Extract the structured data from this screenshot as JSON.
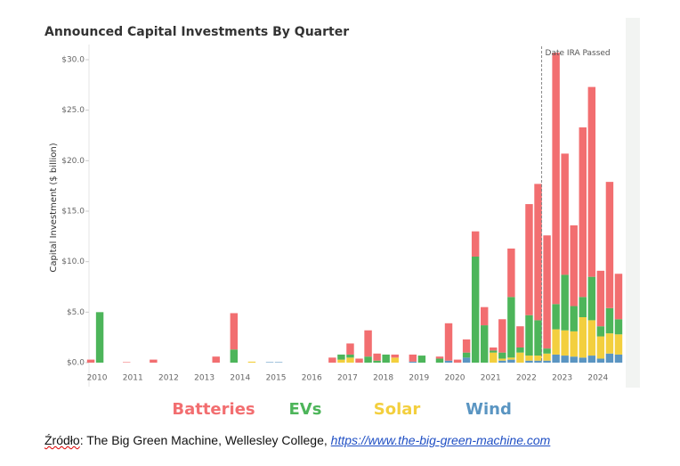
{
  "chart_data": {
    "type": "stacked_bar",
    "title": "Announced Capital Investments By Quarter",
    "ylabel": "Capital Investment ($ billion)",
    "annotation": "Date IRA Passed",
    "categories": [
      "2010",
      null,
      null,
      null,
      "2011",
      null,
      null,
      null,
      "2012",
      null,
      null,
      null,
      "2013",
      null,
      null,
      null,
      "2014",
      null,
      null,
      null,
      "2015",
      null,
      null,
      null,
      "2016",
      null,
      null,
      null,
      "2017",
      null,
      null,
      null,
      "2018",
      null,
      null,
      null,
      "2019",
      null,
      null,
      null,
      "2020",
      null,
      null,
      null,
      "2021",
      null,
      null,
      null,
      "2022",
      null,
      null,
      null,
      "2023",
      null,
      null,
      null,
      "2024",
      null,
      null,
      null
    ],
    "series": [
      {
        "name": "Batteries",
        "color": "#f26e70",
        "values": [
          0.3,
          0,
          0,
          0,
          0.05,
          0,
          0,
          0.3,
          0,
          0,
          0,
          0,
          0,
          0,
          0.6,
          0,
          3.6,
          0,
          0,
          0,
          0,
          0,
          0,
          0,
          0,
          0,
          0,
          0.5,
          0,
          1.1,
          0.4,
          2.6,
          0.7,
          0,
          0.3,
          0,
          0.7,
          0,
          0,
          0.2,
          3.7,
          0.3,
          1.3,
          2.5,
          1.8,
          0.3,
          3.3,
          4.8,
          2.1,
          11.0,
          13.5,
          11.2,
          24.9,
          12.0,
          8.0,
          16.8,
          18.8,
          5.5,
          12.5,
          4.5
        ]
      },
      {
        "name": "EVs",
        "color": "#4db55a",
        "values": [
          0,
          5.0,
          0,
          0,
          0,
          0,
          0,
          0,
          0,
          0,
          0,
          0,
          0,
          0,
          0,
          0,
          1.3,
          0,
          0,
          0,
          0,
          0,
          0,
          0,
          0,
          0,
          0,
          0,
          0.5,
          0.3,
          0,
          0.6,
          0.2,
          0.8,
          0,
          0,
          0,
          0.7,
          0,
          0.4,
          0,
          0,
          0.5,
          10.5,
          3.7,
          0.2,
          0.6,
          6.0,
          0.5,
          4.0,
          3.5,
          0.5,
          2.5,
          5.5,
          2.5,
          2.0,
          4.3,
          1.0,
          2.5,
          1.5
        ]
      },
      {
        "name": "Solar",
        "color": "#f3cf3e",
        "values": [
          0,
          0,
          0,
          0,
          0,
          0,
          0,
          0,
          0,
          0,
          0,
          0,
          0,
          0,
          0,
          0,
          0,
          0,
          0.1,
          0,
          0,
          0,
          0,
          0,
          0,
          0,
          0,
          0,
          0.3,
          0.5,
          0,
          0,
          0,
          0,
          0.5,
          0,
          0,
          0,
          0,
          0,
          0,
          0,
          0,
          0,
          0,
          1.0,
          0.2,
          0.2,
          1.0,
          0.5,
          0.5,
          0.7,
          2.5,
          2.5,
          2.5,
          4.0,
          3.5,
          2.2,
          2.0,
          2.0
        ]
      },
      {
        "name": "Wind",
        "color": "#5a95c2",
        "values": [
          0,
          0,
          0,
          0,
          0,
          0,
          0,
          0,
          0,
          0,
          0,
          0,
          0,
          0,
          0,
          0,
          0,
          0,
          0,
          0,
          0.05,
          0.05,
          0,
          0,
          0,
          0,
          0,
          0,
          0,
          0,
          0,
          0,
          0,
          0,
          0,
          0,
          0.1,
          0,
          0,
          0,
          0.2,
          0,
          0.5,
          0,
          0,
          0,
          0.2,
          0.3,
          0,
          0.2,
          0.2,
          0.2,
          0.8,
          0.7,
          0.6,
          0.5,
          0.7,
          0.4,
          0.9,
          0.8
        ]
      }
    ],
    "ylim": [
      0,
      31.5
    ],
    "yticks": [
      {
        "value": 0,
        "label": "$0.0"
      },
      {
        "value": 5,
        "label": "$5.0"
      },
      {
        "value": 10,
        "label": "$10.0"
      },
      {
        "value": 15,
        "label": "$15.0"
      },
      {
        "value": 20,
        "label": "$20.0"
      },
      {
        "value": 25,
        "label": "$25.0"
      },
      {
        "value": 30,
        "label": "$30.0"
      }
    ],
    "grid": false
  },
  "source": {
    "prefix": "Źródło",
    "text": ": The Big Green Machine, Wellesley College, ",
    "link": "https://www.the-big-green-machine.com"
  }
}
